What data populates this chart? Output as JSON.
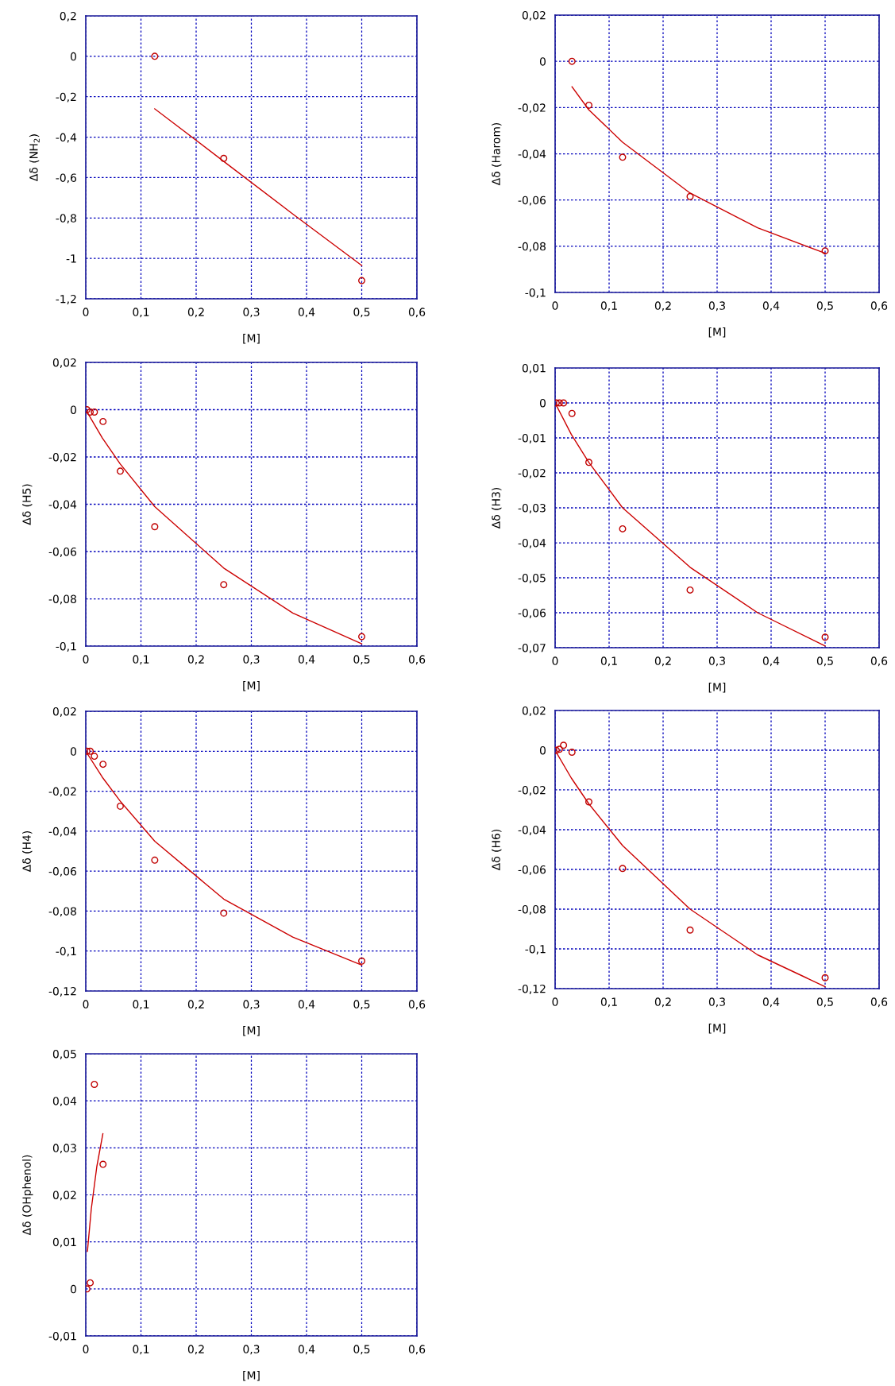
{
  "chart_data": [
    {
      "type": "scatter",
      "xlabel": "[M]",
      "ylabel": "Δδ (NH$_{2}$)",
      "grid": true,
      "marker": "circle",
      "xlim": [
        0,
        0.6
      ],
      "ylim": [
        -1.2,
        0.2
      ],
      "xticks": [
        0,
        {
          "value": 0.1,
          "label": "0,1"
        },
        {
          "value": 0.2,
          "label": "0,2"
        },
        {
          "value": 0.3,
          "label": "0,3"
        },
        {
          "value": 0.4,
          "label": "0,4"
        },
        {
          "value": 0.5,
          "label": "0,5"
        },
        {
          "value": 0.6,
          "label": "0,6"
        }
      ],
      "yticks": [
        {
          "value": -1.2,
          "label": "-1,2"
        },
        -1,
        {
          "value": -0.8,
          "label": "-0,8"
        },
        {
          "value": -0.6,
          "label": "-0,6"
        },
        {
          "value": -0.4,
          "label": "-0,4"
        },
        {
          "value": -0.2,
          "label": "-0,2"
        },
        0,
        {
          "value": 0.2,
          "label": "0,2"
        }
      ],
      "series": [
        {
          "color": "#c00000",
          "x": [
            0.125,
            0.25,
            0.5
          ],
          "values": [
            0,
            -0.505,
            -1.11
          ]
        },
        {
          "type": "line",
          "color": "#cc0000",
          "marker": "none",
          "x": [
            0.125,
            0.25,
            0.375,
            0.5
          ],
          "values": [
            -0.26,
            -0.52,
            -0.78,
            -1.035
          ]
        }
      ]
    },
    {
      "type": "scatter",
      "xlabel": "[M]",
      "ylabel": "Δδ (Harom)",
      "grid": true,
      "marker": "circle",
      "xlim": [
        0,
        0.6
      ],
      "ylim": [
        -0.1,
        0.02
      ],
      "xticks": [
        0,
        {
          "value": 0.1,
          "label": "0,1"
        },
        {
          "value": 0.2,
          "label": "0,2"
        },
        {
          "value": 0.3,
          "label": "0,3"
        },
        {
          "value": 0.4,
          "label": "0,4"
        },
        {
          "value": 0.5,
          "label": "0,5"
        },
        {
          "value": 0.6,
          "label": "0,6"
        }
      ],
      "yticks": [
        {
          "value": -0.1,
          "label": "-0,1"
        },
        {
          "value": -0.08,
          "label": "-0,08"
        },
        {
          "value": -0.06,
          "label": "-0,06"
        },
        {
          "value": -0.04,
          "label": "-0,04"
        },
        {
          "value": -0.02,
          "label": "-0,02"
        },
        0,
        {
          "value": 0.02,
          "label": "0,02"
        }
      ],
      "series": [
        {
          "color": "#c00000",
          "x": [
            0.03125,
            0.0625,
            0.125,
            0.25,
            0.5
          ],
          "values": [
            0,
            -0.019,
            -0.0415,
            -0.0585,
            -0.082
          ]
        },
        {
          "type": "line",
          "color": "#cc0000",
          "marker": "none",
          "x": [
            0.03125,
            0.0625,
            0.125,
            0.25,
            0.375,
            0.5
          ],
          "values": [
            -0.011,
            -0.021,
            -0.035,
            -0.057,
            -0.072,
            -0.083
          ]
        }
      ]
    },
    {
      "type": "scatter",
      "xlabel": "[M]",
      "ylabel": "Δδ (H5)",
      "grid": true,
      "marker": "circle",
      "xlim": [
        0,
        0.6
      ],
      "ylim": [
        -0.1,
        0.02
      ],
      "xticks": [
        0,
        {
          "value": 0.1,
          "label": "0,1"
        },
        {
          "value": 0.2,
          "label": "0,2"
        },
        {
          "value": 0.3,
          "label": "0,3"
        },
        {
          "value": 0.4,
          "label": "0,4"
        },
        {
          "value": 0.5,
          "label": "0,5"
        },
        {
          "value": 0.6,
          "label": "0,6"
        }
      ],
      "yticks": [
        {
          "value": -0.1,
          "label": "-0,1"
        },
        {
          "value": -0.08,
          "label": "-0,08"
        },
        {
          "value": -0.06,
          "label": "-0,06"
        },
        {
          "value": -0.04,
          "label": "-0,04"
        },
        {
          "value": -0.02,
          "label": "-0,02"
        },
        0,
        {
          "value": 0.02,
          "label": "0,02"
        }
      ],
      "series": [
        {
          "color": "#c00000",
          "x": [
            0.002,
            0.008,
            0.0156,
            0.03125,
            0.0625,
            0.125,
            0.25,
            0.5
          ],
          "values": [
            0,
            -0.001,
            -0.001,
            -0.005,
            -0.026,
            -0.0495,
            -0.074,
            -0.096
          ]
        },
        {
          "type": "line",
          "color": "#cc0000",
          "marker": "none",
          "x": [
            0,
            0.03,
            0.0625,
            0.125,
            0.25,
            0.375,
            0.5
          ],
          "values": [
            0,
            -0.012,
            -0.023,
            -0.041,
            -0.067,
            -0.086,
            -0.099
          ]
        }
      ]
    },
    {
      "type": "scatter",
      "xlabel": "[M]",
      "ylabel": "Δδ (H3)",
      "grid": true,
      "marker": "circle",
      "xlim": [
        0,
        0.6
      ],
      "ylim": [
        -0.07,
        0.01
      ],
      "xticks": [
        0,
        {
          "value": 0.1,
          "label": "0,1"
        },
        {
          "value": 0.2,
          "label": "0,2"
        },
        {
          "value": 0.3,
          "label": "0,3"
        },
        {
          "value": 0.4,
          "label": "0,4"
        },
        {
          "value": 0.5,
          "label": "0,5"
        },
        {
          "value": 0.6,
          "label": "0,6"
        }
      ],
      "yticks": [
        {
          "value": -0.07,
          "label": "-0,07"
        },
        {
          "value": -0.06,
          "label": "-0,06"
        },
        {
          "value": -0.05,
          "label": "-0,05"
        },
        {
          "value": -0.04,
          "label": "-0,04"
        },
        {
          "value": -0.03,
          "label": "-0,03"
        },
        {
          "value": -0.02,
          "label": "-0,02"
        },
        {
          "value": -0.01,
          "label": "-0,01"
        },
        0,
        {
          "value": 0.01,
          "label": "0,01"
        }
      ],
      "series": [
        {
          "color": "#c00000",
          "x": [
            0.002,
            0.008,
            0.0156,
            0.03125,
            0.0625,
            0.125,
            0.25,
            0.5
          ],
          "values": [
            0,
            0,
            0,
            -0.003,
            -0.017,
            -0.036,
            -0.0535,
            -0.067
          ]
        },
        {
          "type": "line",
          "color": "#cc0000",
          "marker": "none",
          "x": [
            0,
            0.03,
            0.0625,
            0.125,
            0.25,
            0.375,
            0.5
          ],
          "values": [
            0,
            -0.009,
            -0.017,
            -0.03,
            -0.047,
            -0.06,
            -0.0695
          ]
        }
      ]
    },
    {
      "type": "scatter",
      "xlabel": "[M]",
      "ylabel": "Δδ (H4)",
      "grid": true,
      "marker": "circle",
      "xlim": [
        0,
        0.6
      ],
      "ylim": [
        -0.12,
        0.02
      ],
      "xticks": [
        0,
        {
          "value": 0.1,
          "label": "0,1"
        },
        {
          "value": 0.2,
          "label": "0,2"
        },
        {
          "value": 0.3,
          "label": "0,3"
        },
        {
          "value": 0.4,
          "label": "0,4"
        },
        {
          "value": 0.5,
          "label": "0,5"
        },
        {
          "value": 0.6,
          "label": "0,6"
        }
      ],
      "yticks": [
        {
          "value": -0.12,
          "label": "-0,12"
        },
        {
          "value": -0.1,
          "label": "-0,1"
        },
        {
          "value": -0.08,
          "label": "-0,08"
        },
        {
          "value": -0.06,
          "label": "-0,06"
        },
        {
          "value": -0.04,
          "label": "-0,04"
        },
        {
          "value": -0.02,
          "label": "-0,02"
        },
        0,
        {
          "value": 0.02,
          "label": "0,02"
        }
      ],
      "series": [
        {
          "color": "#c00000",
          "x": [
            0.002,
            0.008,
            0.0156,
            0.03125,
            0.0625,
            0.125,
            0.25,
            0.5
          ],
          "values": [
            0,
            0,
            -0.0025,
            -0.0065,
            -0.0275,
            -0.0545,
            -0.081,
            -0.105
          ]
        },
        {
          "type": "line",
          "color": "#cc0000",
          "marker": "none",
          "x": [
            0,
            0.03,
            0.0625,
            0.125,
            0.25,
            0.375,
            0.5
          ],
          "values": [
            0,
            -0.013,
            -0.025,
            -0.045,
            -0.074,
            -0.093,
            -0.107
          ]
        }
      ]
    },
    {
      "type": "scatter",
      "xlabel": "[M]",
      "ylabel": "Δδ (H6)",
      "grid": true,
      "marker": "circle",
      "xlim": [
        0,
        0.6
      ],
      "ylim": [
        -0.12,
        0.02
      ],
      "xticks": [
        0,
        {
          "value": 0.1,
          "label": "0,1"
        },
        {
          "value": 0.2,
          "label": "0,2"
        },
        {
          "value": 0.3,
          "label": "0,3"
        },
        {
          "value": 0.4,
          "label": "0,4"
        },
        {
          "value": 0.5,
          "label": "0,5"
        },
        {
          "value": 0.6,
          "label": "0,6"
        }
      ],
      "yticks": [
        {
          "value": -0.12,
          "label": "-0,12"
        },
        {
          "value": -0.1,
          "label": "-0,1"
        },
        {
          "value": -0.08,
          "label": "-0,08"
        },
        {
          "value": -0.06,
          "label": "-0,06"
        },
        {
          "value": -0.04,
          "label": "-0,04"
        },
        {
          "value": -0.02,
          "label": "-0,02"
        },
        0,
        {
          "value": 0.02,
          "label": "0,02"
        }
      ],
      "series": [
        {
          "color": "#c00000",
          "x": [
            0.002,
            0.008,
            0.0156,
            0.03125,
            0.0625,
            0.125,
            0.25,
            0.5
          ],
          "values": [
            0,
            0.0005,
            0.0025,
            -0.001,
            -0.026,
            -0.0595,
            -0.0905,
            -0.1145
          ]
        },
        {
          "type": "line",
          "color": "#cc0000",
          "marker": "none",
          "x": [
            0,
            0.03,
            0.0625,
            0.125,
            0.25,
            0.375,
            0.5
          ],
          "values": [
            0,
            -0.014,
            -0.027,
            -0.048,
            -0.08,
            -0.103,
            -0.119
          ]
        }
      ]
    },
    {
      "type": "scatter",
      "xlabel": "[M]",
      "ylabel": "Δδ (OHphenol)",
      "grid": true,
      "marker": "circle",
      "xlim": [
        0,
        0.6
      ],
      "ylim": [
        -0.01,
        0.05
      ],
      "xticks": [
        0,
        {
          "value": 0.1,
          "label": "0,1"
        },
        {
          "value": 0.2,
          "label": "0,2"
        },
        {
          "value": 0.3,
          "label": "0,3"
        },
        {
          "value": 0.4,
          "label": "0,4"
        },
        {
          "value": 0.5,
          "label": "0,5"
        },
        {
          "value": 0.6,
          "label": "0,6"
        }
      ],
      "yticks": [
        {
          "value": -0.01,
          "label": "-0,01"
        },
        0,
        {
          "value": 0.01,
          "label": "0,01"
        },
        {
          "value": 0.02,
          "label": "0,02"
        },
        {
          "value": 0.03,
          "label": "0,03"
        },
        {
          "value": 0.04,
          "label": "0,04"
        },
        {
          "value": 0.05,
          "label": "0,05"
        }
      ],
      "series": [
        {
          "color": "#c00000",
          "x": [
            0.002,
            0.008,
            0.0156,
            0.03125
          ],
          "values": [
            0,
            0.0013,
            0.0435,
            0.0265
          ]
        },
        {
          "type": "line",
          "color": "#cc0000",
          "marker": "none",
          "x": [
            0.003,
            0.01,
            0.02,
            0.031
          ],
          "values": [
            0.008,
            0.017,
            0.026,
            0.033
          ]
        }
      ]
    }
  ]
}
